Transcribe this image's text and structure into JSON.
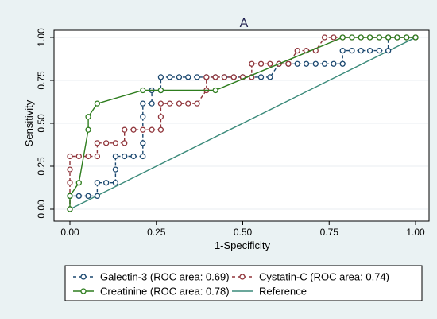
{
  "chart_data": {
    "type": "line",
    "title": "A",
    "xlabel": "1-Specificity",
    "ylabel": "Sensitivity",
    "xlim": [
      0,
      1
    ],
    "ylim": [
      0,
      1
    ],
    "x_ticks": [
      "0.00",
      "0.25",
      "0.50",
      "0.75",
      "1.00"
    ],
    "y_ticks": [
      "0.00",
      "0.25",
      "0.50",
      "0.75",
      "1.00"
    ],
    "grid": true,
    "legend_position": "bottom",
    "series": [
      {
        "name": "Galectin-3 (ROC area: 0.69)",
        "color": "#1a476f",
        "line_style": "dashed",
        "markers": true,
        "x": [
          0.0,
          0.0,
          0.0,
          0.026,
          0.053,
          0.079,
          0.079,
          0.105,
          0.132,
          0.132,
          0.132,
          0.158,
          0.184,
          0.211,
          0.211,
          0.211,
          0.211,
          0.237,
          0.237,
          0.263,
          0.263,
          0.289,
          0.316,
          0.342,
          0.368,
          0.395,
          0.421,
          0.447,
          0.474,
          0.5,
          0.526,
          0.553,
          0.579,
          0.605,
          0.632,
          0.658,
          0.684,
          0.711,
          0.737,
          0.763,
          0.789,
          0.789,
          0.816,
          0.842,
          0.868,
          0.895,
          0.921,
          0.921,
          0.947,
          0.974,
          1.0
        ],
        "y": [
          0.0,
          0.077,
          0.077,
          0.077,
          0.077,
          0.077,
          0.154,
          0.154,
          0.154,
          0.231,
          0.308,
          0.308,
          0.308,
          0.308,
          0.385,
          0.538,
          0.615,
          0.615,
          0.692,
          0.692,
          0.769,
          0.769,
          0.769,
          0.769,
          0.769,
          0.769,
          0.769,
          0.769,
          0.769,
          0.769,
          0.769,
          0.769,
          0.769,
          0.846,
          0.846,
          0.846,
          0.846,
          0.846,
          0.846,
          0.846,
          0.846,
          0.923,
          0.923,
          0.923,
          0.923,
          0.923,
          0.923,
          1.0,
          1.0,
          1.0,
          1.0
        ]
      },
      {
        "name": "Cystatin-C (ROC area: 0.74)",
        "color": "#90353b",
        "line_style": "dashed",
        "markers": true,
        "x": [
          0.0,
          0.0,
          0.0,
          0.0,
          0.026,
          0.053,
          0.079,
          0.079,
          0.105,
          0.132,
          0.158,
          0.158,
          0.184,
          0.211,
          0.237,
          0.263,
          0.263,
          0.263,
          0.289,
          0.316,
          0.342,
          0.368,
          0.395,
          0.395,
          0.421,
          0.447,
          0.474,
          0.5,
          0.526,
          0.526,
          0.553,
          0.579,
          0.605,
          0.632,
          0.658,
          0.684,
          0.711,
          0.737,
          0.763,
          0.789,
          0.816,
          0.842,
          0.868,
          0.895,
          0.921,
          0.947,
          0.974,
          1.0
        ],
        "y": [
          0.0,
          0.154,
          0.231,
          0.308,
          0.308,
          0.308,
          0.308,
          0.385,
          0.385,
          0.385,
          0.385,
          0.462,
          0.462,
          0.462,
          0.462,
          0.462,
          0.538,
          0.615,
          0.615,
          0.615,
          0.615,
          0.615,
          0.692,
          0.769,
          0.769,
          0.769,
          0.769,
          0.769,
          0.769,
          0.846,
          0.846,
          0.846,
          0.846,
          0.846,
          0.923,
          0.923,
          0.923,
          1.0,
          1.0,
          1.0,
          1.0,
          1.0,
          1.0,
          1.0,
          1.0,
          1.0,
          1.0,
          1.0
        ]
      },
      {
        "name": "Creatinine (ROC area: 0.78)",
        "color": "#2e7d1e",
        "line_style": "solid",
        "markers": true,
        "x": [
          0.0,
          0.0,
          0.026,
          0.053,
          0.053,
          0.079,
          0.211,
          0.263,
          0.421,
          0.789,
          0.816,
          0.842,
          0.868,
          0.895,
          0.921,
          0.947,
          0.974,
          1.0
        ],
        "y": [
          0.0,
          0.077,
          0.154,
          0.462,
          0.538,
          0.615,
          0.692,
          0.692,
          0.692,
          1.0,
          1.0,
          1.0,
          1.0,
          1.0,
          1.0,
          1.0,
          1.0,
          1.0
        ]
      },
      {
        "name": "Reference",
        "color": "#3a8a7a",
        "line_style": "solid",
        "markers": false,
        "x": [
          0,
          1
        ],
        "y": [
          0,
          1
        ]
      }
    ]
  }
}
